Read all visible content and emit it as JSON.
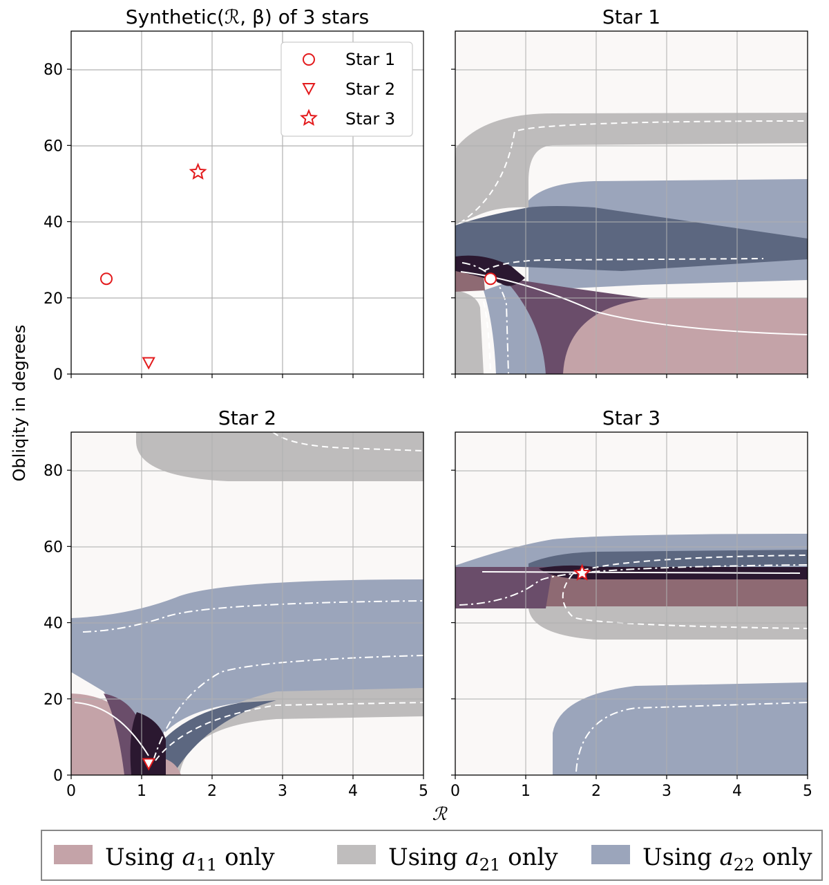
{
  "figure": {
    "ylabel": "Obliqity in degrees",
    "xlabel": "ℛ",
    "x_ticks": [
      "0",
      "1",
      "2",
      "3",
      "4",
      "5"
    ],
    "y_ticks": [
      "0",
      "20",
      "40",
      "60",
      "80"
    ],
    "bottom_legend": [
      {
        "label": "Using a11 only",
        "prefix": "Using",
        "var": "a",
        "sub": "11",
        "suffix": "only",
        "color": "#c4a3a8"
      },
      {
        "label": "Using a21 only",
        "prefix": "Using",
        "var": "a",
        "sub": "21",
        "suffix": "only",
        "color": "#bfbdbd"
      },
      {
        "label": "Using a22 only",
        "prefix": "Using",
        "var": "a",
        "sub": "22",
        "suffix": "only",
        "color": "#9ba5bb"
      }
    ]
  },
  "chart_data": [
    {
      "panel": "top-left",
      "type": "scatter",
      "title": "Synthetic(ℛ, β) of 3 stars",
      "xlabel": "",
      "ylabel": "Obliqity in degrees",
      "xlim": [
        0,
        5
      ],
      "ylim": [
        0,
        90
      ],
      "grid": true,
      "legend": {
        "position": "top-right",
        "entries": [
          "Star 1",
          "Star 2",
          "Star 3"
        ]
      },
      "series": [
        {
          "name": "Star 1",
          "marker": "circle",
          "color": "#e31a1c",
          "x": [
            0.5
          ],
          "y": [
            25
          ]
        },
        {
          "name": "Star 2",
          "marker": "triangle-down",
          "color": "#e31a1c",
          "x": [
            1.1
          ],
          "y": [
            3
          ]
        },
        {
          "name": "Star 3",
          "marker": "star",
          "color": "#e31a1c",
          "x": [
            1.8
          ],
          "y": [
            53
          ]
        }
      ]
    },
    {
      "panel": "top-right",
      "type": "area",
      "title": "Star 1",
      "xlim": [
        0,
        5
      ],
      "ylim": [
        0,
        90
      ],
      "grid": true,
      "true_value": {
        "x": 0.5,
        "y": 25,
        "marker": "circle"
      }
    },
    {
      "panel": "bottom-left",
      "type": "area",
      "title": "Star 2",
      "xlabel": "",
      "xlim": [
        0,
        5
      ],
      "ylim": [
        0,
        90
      ],
      "grid": true,
      "true_value": {
        "x": 1.1,
        "y": 3,
        "marker": "triangle-down"
      }
    },
    {
      "panel": "bottom-right",
      "type": "area",
      "title": "Star 3",
      "xlabel": "",
      "xlim": [
        0,
        5
      ],
      "ylim": [
        0,
        90
      ],
      "grid": true,
      "true_value": {
        "x": 1.8,
        "y": 53,
        "marker": "star"
      }
    }
  ]
}
